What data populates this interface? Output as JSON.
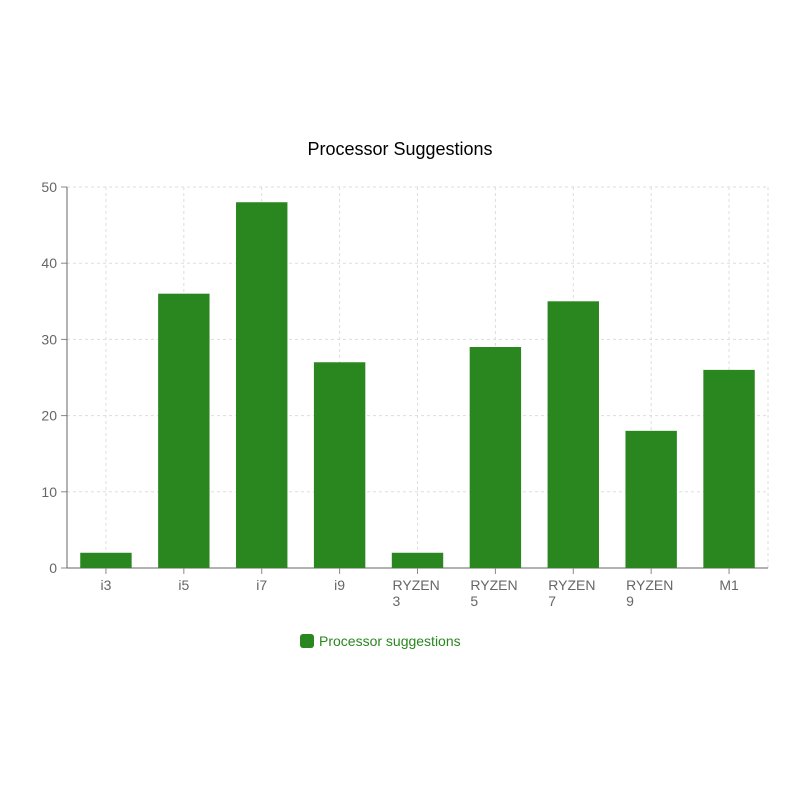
{
  "chart_data": {
    "type": "bar",
    "title": "Processor Suggestions",
    "categories": [
      "i3",
      "i5",
      "i7",
      "i9",
      "RYZEN 3",
      "RYZEN 5",
      "RYZEN 7",
      "RYZEN 9",
      "M1"
    ],
    "series": [
      {
        "name": "Processor suggestions",
        "values": [
          2,
          36,
          48,
          27,
          2,
          29,
          35,
          18,
          26
        ],
        "color": "#2a861f"
      }
    ],
    "xlabel": "",
    "ylabel": "",
    "ylim": [
      0,
      50
    ],
    "yticks": [
      "0",
      "10",
      "20",
      "30",
      "40",
      "50"
    ],
    "grid": true,
    "legend_position": "bottom"
  }
}
